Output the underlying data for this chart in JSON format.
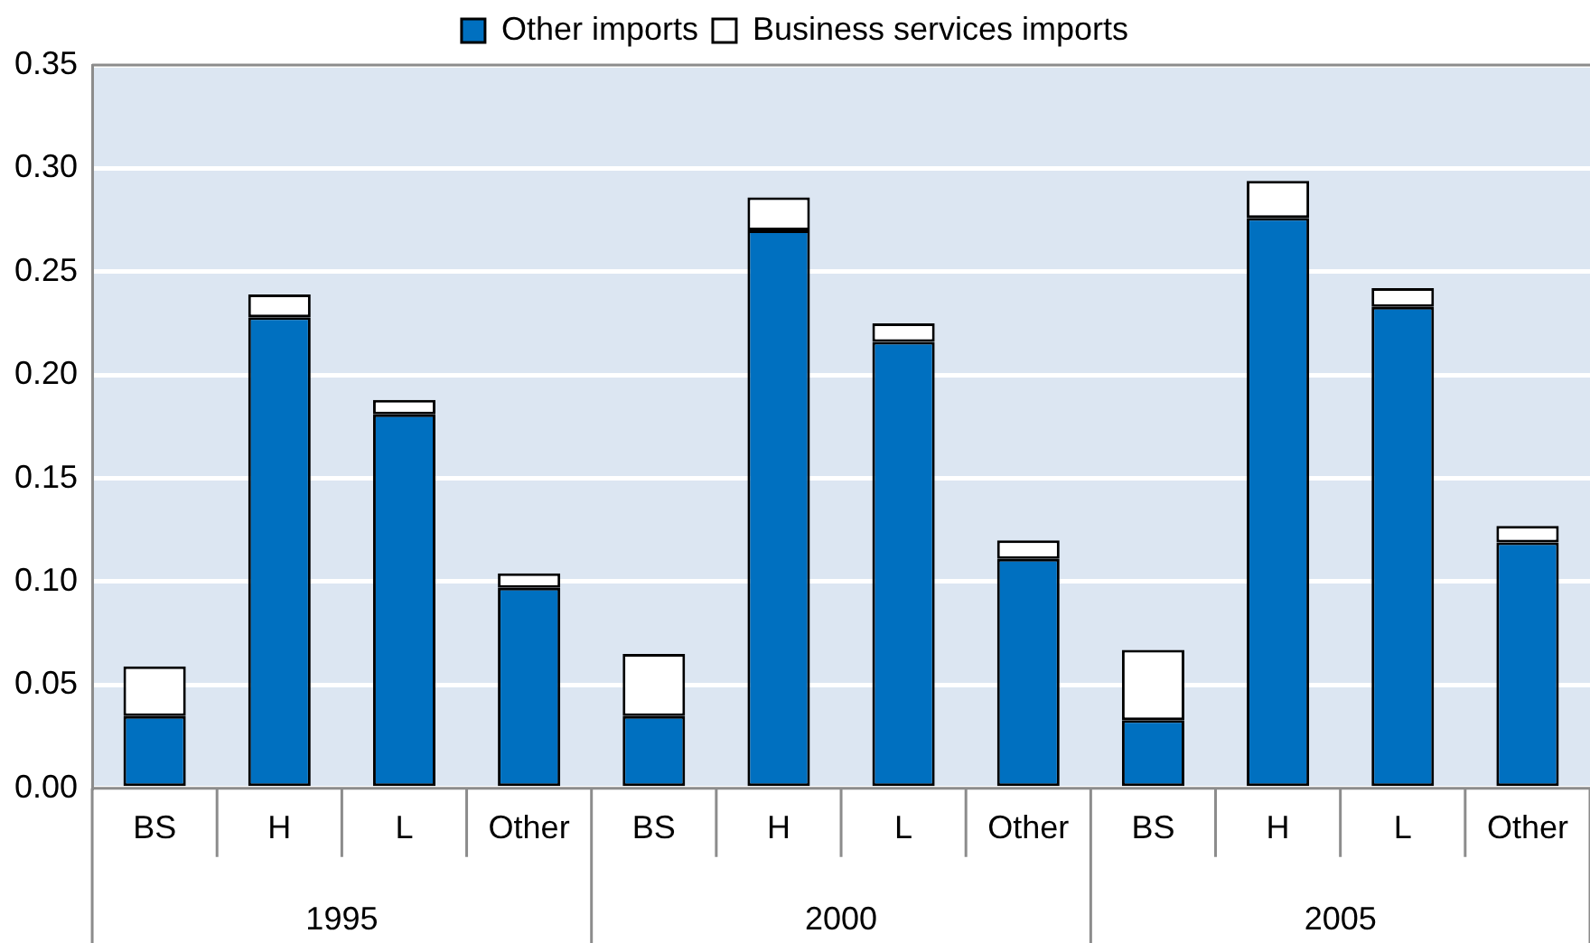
{
  "chart_data": {
    "type": "bar",
    "stacked": true,
    "categories": [
      "BS",
      "H",
      "L",
      "Other",
      "BS",
      "H",
      "L",
      "Other",
      "BS",
      "H",
      "L",
      "Other"
    ],
    "series": [
      {
        "name": "Other imports",
        "color": "#0070c0",
        "values": [
          0.035,
          0.228,
          0.181,
          0.097,
          0.035,
          0.27,
          0.216,
          0.111,
          0.033,
          0.276,
          0.233,
          0.119
        ]
      },
      {
        "name": "Business services imports",
        "color": "#ffffff",
        "values": [
          0.024,
          0.011,
          0.007,
          0.007,
          0.03,
          0.016,
          0.009,
          0.009,
          0.034,
          0.018,
          0.009,
          0.008
        ]
      }
    ],
    "annotations": [
      "1995",
      "2000",
      "2005"
    ],
    "ylim": [
      0,
      0.35
    ],
    "yticks": [
      {
        "value": 0,
        "label": "0.00"
      },
      {
        "value": 0.05,
        "label": "0.05"
      },
      {
        "value": 0.1,
        "label": "0.10"
      },
      {
        "value": 0.15,
        "label": "0.15"
      },
      {
        "value": 0.2,
        "label": "0.20"
      },
      {
        "value": 0.25,
        "label": "0.25"
      },
      {
        "value": 0.3,
        "label": "0.30"
      },
      {
        "value": 0.35,
        "label": "0.35"
      }
    ],
    "grid": "y",
    "legend": "top"
  }
}
